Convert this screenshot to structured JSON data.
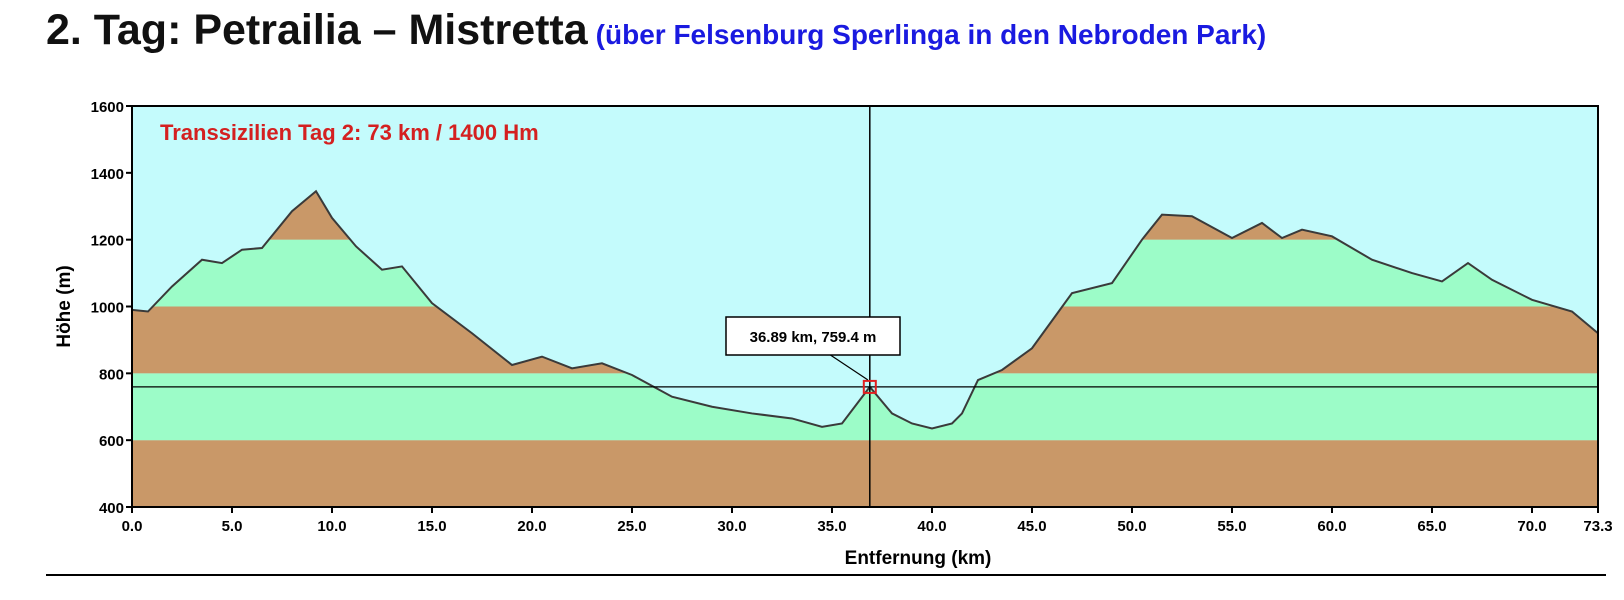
{
  "heading": {
    "title": "2. Tag: Petrailia – Mistretta",
    "subtitle": "(über Felsenburg Sperlinga in den Nebroden Park)"
  },
  "colors": {
    "sky": "#c4fbfc",
    "band_green": "#9cfcc8",
    "band_brown": "#c99868",
    "profile_line": "#3a3a3a",
    "annotation_text": "#d42020",
    "marker": "#e02020"
  },
  "chart_data": {
    "type": "area",
    "title": "Transsizilien Tag 2: 73 km / 1400 Hm",
    "xlabel": "Entfernung   (km)",
    "ylabel": "Höhe (m)",
    "xlim": [
      0,
      73.3
    ],
    "ylim": [
      400,
      1600
    ],
    "x_ticks": [
      "0.0",
      "5.0",
      "10.0",
      "15.0",
      "20.0",
      "25.0",
      "30.0",
      "35.0",
      "40.0",
      "45.0",
      "50.0",
      "55.0",
      "60.0",
      "65.0",
      "70.0",
      "73.3"
    ],
    "x_tick_values": [
      0,
      5,
      10,
      15,
      20,
      25,
      30,
      35,
      40,
      45,
      50,
      55,
      60,
      65,
      70,
      73.3
    ],
    "y_ticks": [
      "400",
      "600",
      "800",
      "1000",
      "1200",
      "1400",
      "1600"
    ],
    "y_tick_values": [
      400,
      600,
      800,
      1000,
      1200,
      1400,
      1600
    ],
    "elevation_bands": [
      {
        "from": 400,
        "to": 600,
        "color": "#c99868"
      },
      {
        "from": 600,
        "to": 800,
        "color": "#9cfcc8"
      },
      {
        "from": 800,
        "to": 1000,
        "color": "#c99868"
      },
      {
        "from": 1000,
        "to": 1200,
        "color": "#9cfcc8"
      },
      {
        "from": 1200,
        "to": 1400,
        "color": "#c99868"
      }
    ],
    "series": [
      {
        "x": [
          0,
          0.8,
          2.0,
          3.5,
          4.5,
          5.5,
          6.5,
          8.0,
          9.2,
          10.0,
          11.2,
          12.5,
          13.5,
          15.0,
          17.0,
          19.0,
          20.5,
          22.0,
          23.5,
          25.0,
          27.0,
          29.0,
          31.0,
          33.0,
          34.5,
          35.5,
          36.89,
          38.0,
          39.0,
          40.0,
          41.0,
          41.5,
          42.3,
          43.5,
          45.0,
          47.0,
          49.0,
          50.5,
          51.5,
          53.0,
          55.0,
          56.5,
          57.5,
          58.5,
          60.0,
          62.0,
          64.0,
          65.5,
          66.8,
          68.0,
          70.0,
          72.0,
          73.3
        ],
        "y": [
          990,
          985,
          1060,
          1140,
          1130,
          1170,
          1175,
          1285,
          1345,
          1265,
          1180,
          1110,
          1120,
          1010,
          920,
          825,
          850,
          815,
          830,
          795,
          730,
          700,
          680,
          665,
          640,
          650,
          759.4,
          680,
          650,
          635,
          650,
          680,
          780,
          810,
          875,
          1040,
          1070,
          1200,
          1275,
          1270,
          1205,
          1250,
          1205,
          1230,
          1210,
          1140,
          1100,
          1075,
          1130,
          1080,
          1020,
          985,
          920
        ]
      }
    ],
    "cursor": {
      "x": 36.89,
      "y": 759.4,
      "label": "36.89 km, 759.4 m"
    }
  }
}
